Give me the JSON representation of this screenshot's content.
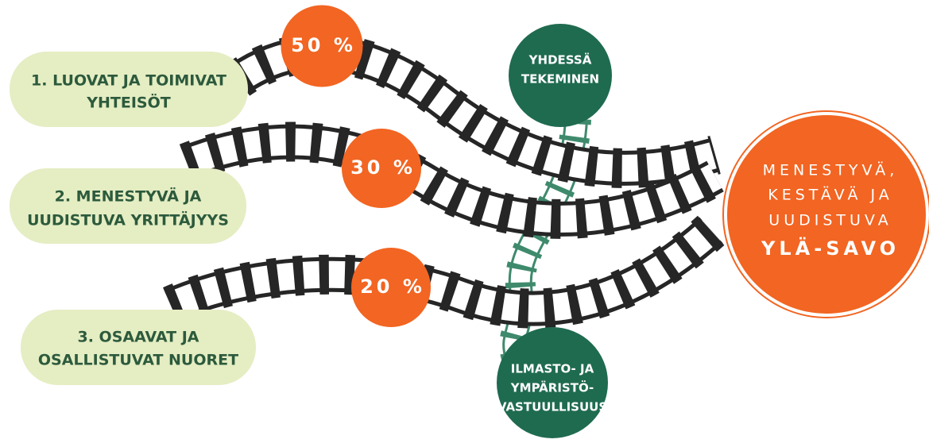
{
  "themes": [
    {
      "lines": [
        "1. LUOVAT JA TOIMIVAT",
        "YHTEISÖT"
      ],
      "share": "50 %"
    },
    {
      "lines": [
        "2. MENESTYVÄ JA",
        "UUDISTUVA YRITTÄJYYS"
      ],
      "share": "30 %"
    },
    {
      "lines": [
        "3. OSAAVAT JA",
        "OSALLISTUVAT NUORET"
      ],
      "share": "20 %"
    }
  ],
  "principles": [
    {
      "lines": [
        "YHDESSÄ",
        "TEKEMINEN"
      ]
    },
    {
      "lines": [
        "ILMASTO- JA",
        "YMPÄRISTÖ-",
        "VASTUULLISUUS"
      ]
    }
  ],
  "goal": {
    "lines": [
      "MENESTYVÄ,",
      "KESTÄVÄ JA",
      "UUDISTUVA",
      "YLÄ-SAVO"
    ]
  }
}
